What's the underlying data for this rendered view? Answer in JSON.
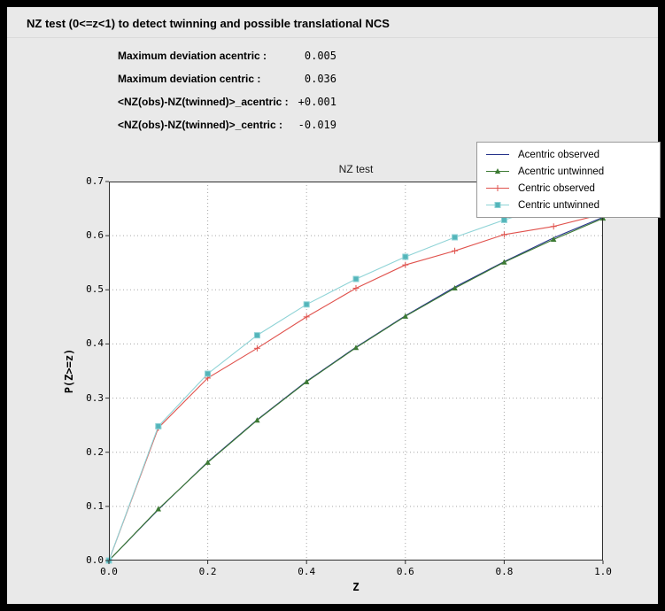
{
  "window": {
    "title": "NZ test (0<=z<1) to detect twinning and possible translational NCS"
  },
  "stats": [
    {
      "label": "Maximum deviation acentric :",
      "value": "0.005"
    },
    {
      "label": "Maximum deviation centric :",
      "value": "0.036"
    },
    {
      "label": "<NZ(obs)-NZ(twinned)>_acentric :",
      "value": "+0.001"
    },
    {
      "label": "<NZ(obs)-NZ(twinned)>_centric :",
      "value": "-0.019"
    }
  ],
  "chart_data": {
    "type": "line",
    "title": "NZ test",
    "xlabel": "Z",
    "ylabel": "P(Z>=z)",
    "xlim": [
      0.0,
      1.0
    ],
    "ylim": [
      0.0,
      0.7
    ],
    "x_ticks": [
      0.0,
      0.2,
      0.4,
      0.6,
      0.8,
      1.0
    ],
    "y_ticks": [
      0.0,
      0.1,
      0.2,
      0.3,
      0.4,
      0.5,
      0.6,
      0.7
    ],
    "grid": true,
    "grid_style": "dotted",
    "legend_position": "top-right",
    "plot_bg": "#ffffff",
    "figure_bg": "#e9e9e9",
    "x": [
      0.0,
      0.1,
      0.2,
      0.3,
      0.4,
      0.5,
      0.6,
      0.7,
      0.8,
      0.9,
      1.0
    ],
    "series": [
      {
        "name": "Acentric observed",
        "color": "#27348b",
        "marker": "none",
        "values": [
          0.0,
          0.094,
          0.182,
          0.26,
          0.331,
          0.394,
          0.452,
          0.505,
          0.552,
          0.596,
          0.634
        ]
      },
      {
        "name": "Acentric untwinned",
        "color": "#3c7a33",
        "marker": "triangle",
        "values": [
          0.0,
          0.095,
          0.181,
          0.259,
          0.33,
          0.393,
          0.451,
          0.503,
          0.551,
          0.593,
          0.632
        ]
      },
      {
        "name": "Centric observed",
        "color": "#e0524d",
        "marker": "plus",
        "values": [
          0.0,
          0.245,
          0.337,
          0.392,
          0.45,
          0.503,
          0.546,
          0.572,
          0.602,
          0.617,
          0.64
        ]
      },
      {
        "name": "Centric untwinned",
        "color": "#8ed3d6",
        "marker": "square",
        "marker_color": "#54b5ba",
        "values": [
          0.0,
          0.248,
          0.345,
          0.416,
          0.473,
          0.52,
          0.561,
          0.597,
          0.629,
          0.657,
          0.683
        ]
      }
    ]
  }
}
